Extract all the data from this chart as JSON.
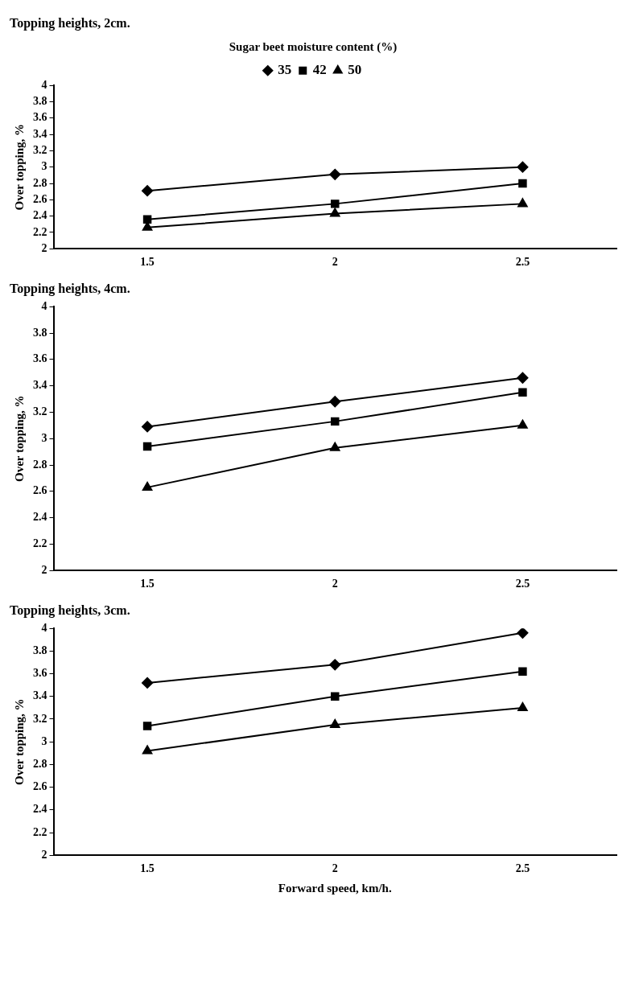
{
  "chart_data": [
    {
      "type": "line",
      "title": "Topping heights, 2cm.",
      "ylabel": "Over topping, %",
      "legend_title": "Sugar beet moisture content (%)",
      "legend": "top",
      "categories": [
        "1.5",
        "2",
        "2.5"
      ],
      "ylim": [
        2,
        4
      ],
      "yticks": [
        2,
        2.2,
        2.4,
        2.6,
        2.8,
        3,
        3.2,
        3.4,
        3.6,
        3.8,
        4
      ],
      "grid": false,
      "series": [
        {
          "name": "35",
          "color": "#000000",
          "marker": "diamond",
          "values": [
            2.71,
            2.91,
            3.0
          ]
        },
        {
          "name": "42",
          "color": "#000000",
          "marker": "square",
          "values": [
            2.36,
            2.55,
            2.8
          ]
        },
        {
          "name": "50",
          "color": "#000000",
          "marker": "triangle",
          "values": [
            2.26,
            2.43,
            2.55
          ]
        }
      ]
    },
    {
      "type": "line",
      "title": "Topping heights, 4cm.",
      "ylabel": "Over topping, %",
      "categories": [
        "1.5",
        "2",
        "2.5"
      ],
      "ylim": [
        2,
        4
      ],
      "yticks": [
        2,
        2.2,
        2.4,
        2.6,
        2.8,
        3,
        3.2,
        3.4,
        3.6,
        3.8,
        4
      ],
      "grid": false,
      "series": [
        {
          "color": "#000000",
          "marker": "diamond",
          "values": [
            3.09,
            3.28,
            3.46
          ]
        },
        {
          "color": "#000000",
          "marker": "square",
          "values": [
            2.94,
            3.13,
            3.35
          ]
        },
        {
          "color": "#000000",
          "marker": "triangle",
          "values": [
            2.63,
            2.93,
            3.1
          ]
        }
      ]
    },
    {
      "type": "line",
      "title": "Topping heights, 3cm.",
      "ylabel": "Over topping, %",
      "xlabel": "Forward speed, km/h.",
      "categories": [
        "1.5",
        "2",
        "2.5"
      ],
      "ylim": [
        2,
        4
      ],
      "yticks": [
        2,
        2.2,
        2.4,
        2.6,
        2.8,
        3,
        3.2,
        3.4,
        3.6,
        3.8,
        4
      ],
      "grid": false,
      "series": [
        {
          "color": "#000000",
          "marker": "diamond",
          "values": [
            3.52,
            3.68,
            3.96
          ]
        },
        {
          "color": "#000000",
          "marker": "square",
          "values": [
            3.14,
            3.4,
            3.62
          ]
        },
        {
          "color": "#000000",
          "marker": "triangle",
          "values": [
            2.92,
            3.15,
            3.3
          ]
        }
      ]
    }
  ]
}
